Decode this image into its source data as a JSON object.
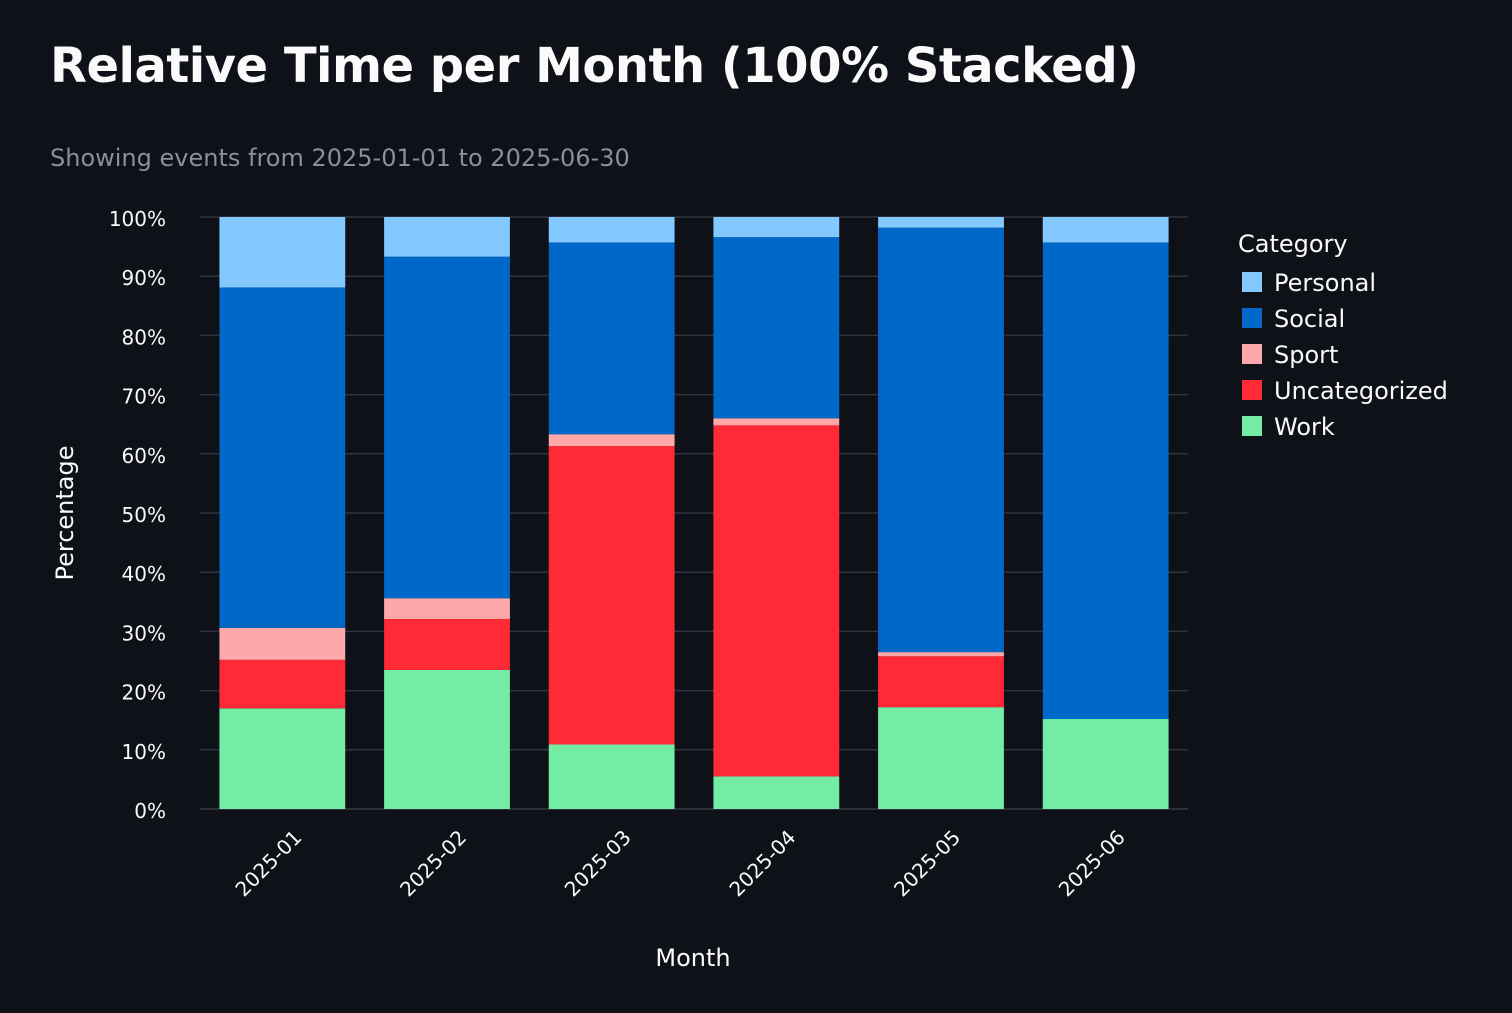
{
  "page": {
    "title": "Relative Time per Month (100% Stacked)",
    "subtitle": "Showing events from 2025-01-01 to 2025-06-30"
  },
  "chart_data": {
    "type": "bar",
    "stacked": true,
    "normalized": true,
    "title": "Relative Time per Month (100% Stacked)",
    "subtitle": "Showing events from 2025-01-01 to 2025-06-30",
    "xlabel": "Month",
    "ylabel": "Percentage",
    "ylim": [
      0,
      100
    ],
    "yticks": [
      "0%",
      "10%",
      "20%",
      "30%",
      "40%",
      "50%",
      "60%",
      "70%",
      "80%",
      "90%",
      "100%"
    ],
    "grid": true,
    "categories": [
      "2025-01",
      "2025-02",
      "2025-03",
      "2025-04",
      "2025-05",
      "2025-06"
    ],
    "legend": {
      "title": "Category",
      "placement": "right"
    },
    "series": [
      {
        "name": "Work",
        "color": "#73eca5",
        "values": [
          17.0,
          23.5,
          10.9,
          5.5,
          17.2,
          15.2
        ]
      },
      {
        "name": "Uncategorized",
        "color": "#ff2a35",
        "values": [
          8.2,
          8.6,
          50.4,
          59.3,
          8.6,
          0
        ]
      },
      {
        "name": "Sport",
        "color": "#ffa8a9",
        "values": [
          5.4,
          3.5,
          2.0,
          1.2,
          0.7,
          0
        ]
      },
      {
        "name": "Social",
        "color": "#0068c9",
        "values": [
          57.5,
          57.7,
          32.4,
          30.6,
          71.7,
          80.5
        ]
      },
      {
        "name": "Personal",
        "color": "#83c9ff",
        "values": [
          11.9,
          6.7,
          4.3,
          3.4,
          1.8,
          4.3
        ]
      }
    ]
  }
}
